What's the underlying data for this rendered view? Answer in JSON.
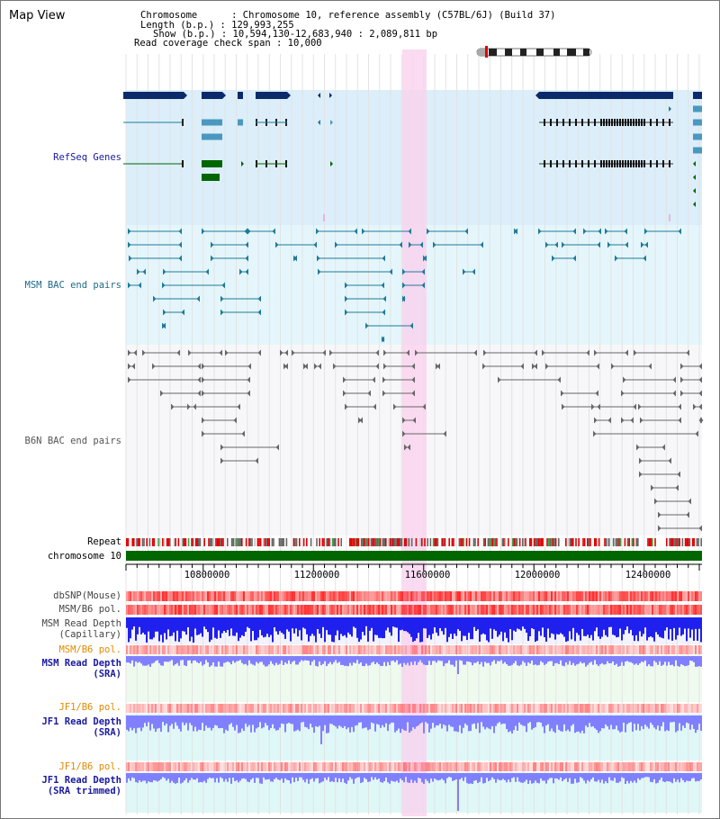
{
  "map_title": "Map View",
  "info": {
    "chromosome": "Chromosome      : Chromosome 10, reference assembly (C57BL/6J) (Build 37)",
    "length": "Length (b.p.) : 129,993,255",
    "show": "Show (b.p.) : 10,594,130-12,683,940 : 2,089,811 bp",
    "coverage": "Read coverage check span : 10,000"
  },
  "tracks": {
    "refseq": "RefSeq Genes",
    "msm_bac": "MSM BAC end pairs",
    "b6n_bac": "B6N BAC end pairs",
    "repeat": "Repeat",
    "chromosome": "chromosome 10",
    "dbsnp": "dbSNP(Mouse)",
    "msm_b6_pol": "MSM/B6 pol.",
    "msm_rd_cap_1": "MSM Read Depth",
    "msm_rd_cap_2": "(Capillary)",
    "msm_b6_pol2": "MSM/B6 pol.",
    "msm_rd_sra_1": "MSM Read Depth",
    "msm_rd_sra_2": "(SRA)",
    "jf1_b6_pol": "JF1/B6 pol.",
    "jf1_rd_sra_1": "JF1 Read Depth",
    "jf1_rd_sra_2": "(SRA)",
    "jf1_b6_pol2": "JF1/B6 pol.",
    "jf1_rd_trim_1": "JF1 Read Depth",
    "jf1_rd_trim_2": "(SRA trimmed)"
  },
  "axis_ticks": [
    "10800000",
    "11200000",
    "11600000",
    "12000000",
    "12400000"
  ],
  "colors": {
    "refseq_bg": "#dbeefa",
    "msm_bg": "#e4f6fb",
    "b6n_bg": "#f7f7fa",
    "highlight": "#f9d2ee",
    "navy": "#0a2a6a",
    "teal": "#1e7a9a",
    "green": "#006600",
    "label_blue": "#1a1aa0",
    "label_teal": "#1e6a8a",
    "label_orange": "#e08a00",
    "depth_blue": "#2020ee",
    "depth_light": "#8080ff"
  }
}
